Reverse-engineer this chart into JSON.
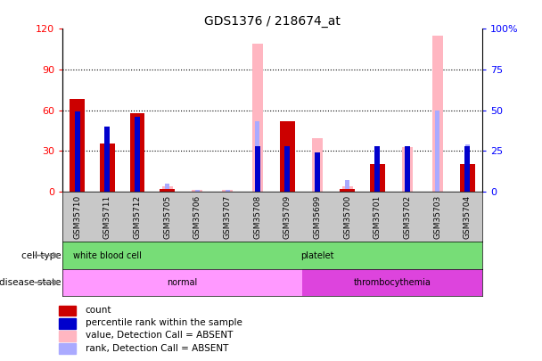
{
  "title": "GDS1376 / 218674_at",
  "samples": [
    "GSM35710",
    "GSM35711",
    "GSM35712",
    "GSM35705",
    "GSM35706",
    "GSM35707",
    "GSM35708",
    "GSM35709",
    "GSM35699",
    "GSM35700",
    "GSM35701",
    "GSM35702",
    "GSM35703",
    "GSM35704"
  ],
  "count": [
    68,
    35,
    58,
    2,
    0,
    0,
    0,
    52,
    0,
    2,
    20,
    0,
    0,
    20
  ],
  "percentile_rank": [
    49,
    40,
    46,
    0,
    0,
    0,
    28,
    28,
    24,
    0,
    28,
    28,
    0,
    28
  ],
  "value_absent": [
    0,
    0,
    0,
    3,
    1,
    1,
    91,
    0,
    33,
    3,
    0,
    27,
    96,
    0
  ],
  "rank_absent": [
    0,
    0,
    0,
    5,
    1,
    1,
    43,
    0,
    0,
    7,
    0,
    28,
    50,
    29
  ],
  "ylim_left": [
    0,
    120
  ],
  "ylim_right": [
    0,
    100
  ],
  "yticks_left": [
    0,
    30,
    60,
    90,
    120
  ],
  "ytick_labels_left": [
    "0",
    "30",
    "60",
    "90",
    "120"
  ],
  "yticks_right": [
    0,
    25,
    50,
    75,
    100
  ],
  "ytick_labels_right": [
    "0",
    "25",
    "50",
    "75",
    "100%"
  ],
  "color_count": "#CC0000",
  "color_rank": "#0000CC",
  "color_value_absent": "#FFB6C1",
  "color_rank_absent": "#AAAAFF",
  "bar_bg_color": "white",
  "tick_area_color": "#C8C8C8",
  "cell_type_wbc_color": "#77DD77",
  "cell_type_platelet_color": "#77DD77",
  "disease_normal_color": "#FF99FF",
  "disease_thromb_color": "#DD44DD",
  "legend_count_color": "#CC0000",
  "legend_rank_color": "#0000CC",
  "legend_value_absent_color": "#FFB6C1",
  "legend_rank_absent_color": "#AAAAFF"
}
